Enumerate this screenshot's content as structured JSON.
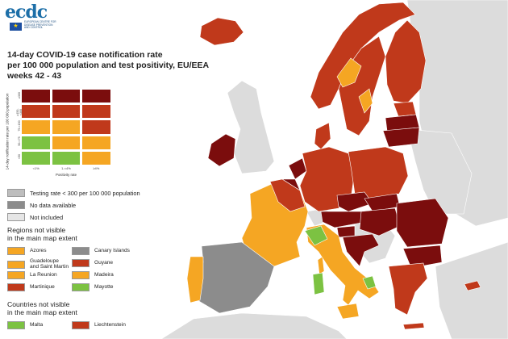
{
  "logo": {
    "word": "ecdc",
    "subtext": "EUROPEAN CENTRE FOR DISEASE PREVENTION AND CONTROL",
    "flag_icon": "eu-flag-icon"
  },
  "title": {
    "line1": "14-day COVID-19 case notification rate",
    "line2": "per 100 000 population and test positivity, EU/EEA",
    "line3": "weeks 42 - 43"
  },
  "matrix": {
    "y_label": "14-day notification rate per 100 000 population",
    "y_ticks": [
      "≥300",
      "≥150-<300",
      "75-<150",
      "50-<75",
      "<50"
    ],
    "x_ticks": [
      "<1%",
      "1-<4%",
      "≥4%"
    ],
    "x_label": "Positivity rate",
    "cell_colors": [
      [
        "#7b0d0d",
        "#7b0d0d",
        "#7b0d0d"
      ],
      [
        "#c0391b",
        "#c0391b",
        "#c0391b"
      ],
      [
        "#f5a623",
        "#f5a623",
        "#c0391b"
      ],
      [
        "#7cc242",
        "#f5a623",
        "#f5a623"
      ],
      [
        "#7cc242",
        "#7cc242",
        "#f5a623"
      ]
    ]
  },
  "legend": {
    "testing_rate": {
      "label": "Testing rate < 300 per 100 000 population",
      "color": "#bdbdbd"
    },
    "no_data": {
      "label": "No data available",
      "color": "#8c8c8c"
    },
    "not_included": {
      "label": "Not included",
      "color": "#e6e6e6"
    }
  },
  "regions": {
    "heading1": "Regions not visible",
    "heading2": "in the main map extent",
    "items": [
      {
        "label": "Azores",
        "color": "#f5a623"
      },
      {
        "label": "Canary Islands",
        "color": "#8c8c8c"
      },
      {
        "label": "Guadeloupe\nand Saint Martin",
        "color": "#f5a623"
      },
      {
        "label": "Guyane",
        "color": "#c0391b"
      },
      {
        "label": "La Reunion",
        "color": "#f5a623"
      },
      {
        "label": "Madeira",
        "color": "#f5a623"
      },
      {
        "label": "Martinique",
        "color": "#c0391b"
      },
      {
        "label": "Mayotte",
        "color": "#7cc242"
      }
    ]
  },
  "countries": {
    "heading1": "Countries not visible",
    "heading2": "in the main map extent",
    "items": [
      {
        "label": "Malta",
        "color": "#7cc242"
      },
      {
        "label": "Liechtenstein",
        "color": "#c0391b"
      }
    ]
  },
  "map_colors": {
    "sea": "#ffffff",
    "not_included": "#dcdcdc",
    "dark_red": "#7b0d0d",
    "red": "#c0391b",
    "orange": "#f5a623",
    "green": "#7cc242",
    "grey": "#8c8c8c",
    "border": "#ffffff"
  }
}
